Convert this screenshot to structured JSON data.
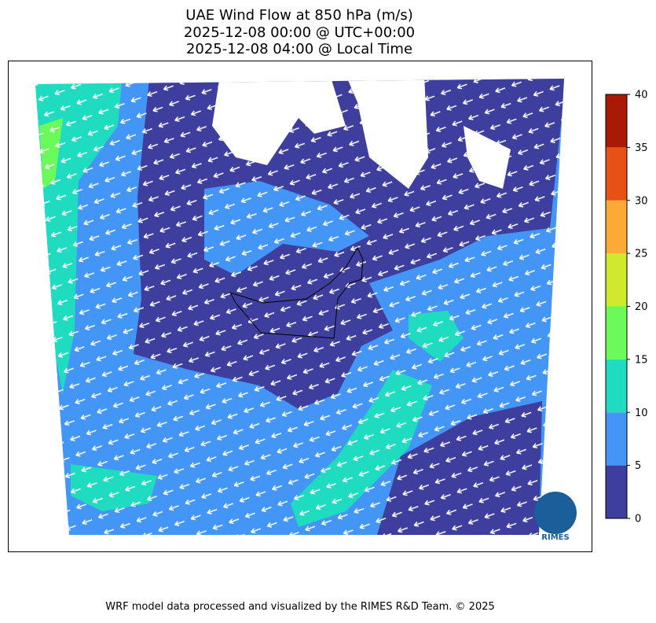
{
  "header": {
    "title_lines": [
      "UAE Wind Flow at 850 hPa (m/s)",
      "2025-12-08 00:00 @ UTC+00:00",
      "2025-12-08 04:00 @ Local Time"
    ]
  },
  "colorbar": {
    "levels": [
      0,
      5,
      10,
      15,
      20,
      25,
      30,
      35,
      40
    ],
    "colors": [
      "#3e3e9e",
      "#4396f5",
      "#1fdcc0",
      "#6afa5a",
      "#d0e82d",
      "#fbaa36",
      "#e85115",
      "#a81a05"
    ]
  },
  "logo": "RIMES",
  "footer": "WRF model data processed and visualized by the RIMES R&D Team. © 2025"
}
